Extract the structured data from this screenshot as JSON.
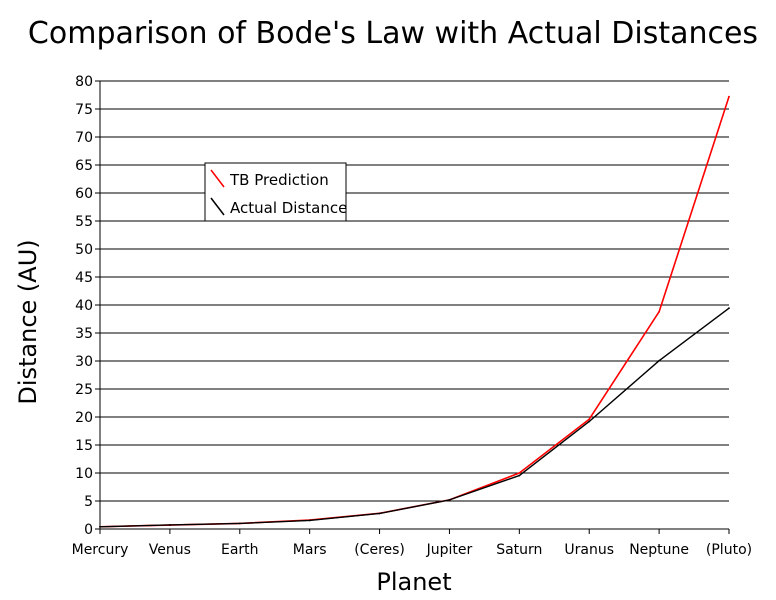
{
  "chart_data": {
    "type": "line",
    "title": "Comparison of Bode's Law with Actual Distances",
    "xlabel": "Planet",
    "ylabel": "Distance (AU)",
    "categories": [
      "Mercury",
      "Venus",
      "Earth",
      "Mars",
      "(Ceres)",
      "Jupiter",
      "Saturn",
      "Uranus",
      "Neptune",
      "(Pluto)"
    ],
    "ylim": [
      0,
      80
    ],
    "yticks": [
      0,
      5,
      10,
      15,
      20,
      25,
      30,
      35,
      40,
      45,
      50,
      55,
      60,
      65,
      70,
      75,
      80
    ],
    "grid": "horizontal",
    "legend_position": "upper-left",
    "series": [
      {
        "name": "TB Prediction",
        "color": "#ff0000",
        "values": [
          0.4,
          0.7,
          1.0,
          1.6,
          2.8,
          5.2,
          10.0,
          19.6,
          38.8,
          77.2
        ]
      },
      {
        "name": "Actual Distance",
        "color": "#000000",
        "values": [
          0.39,
          0.72,
          1.0,
          1.52,
          2.77,
          5.2,
          9.54,
          19.2,
          30.06,
          39.44
        ]
      }
    ]
  }
}
